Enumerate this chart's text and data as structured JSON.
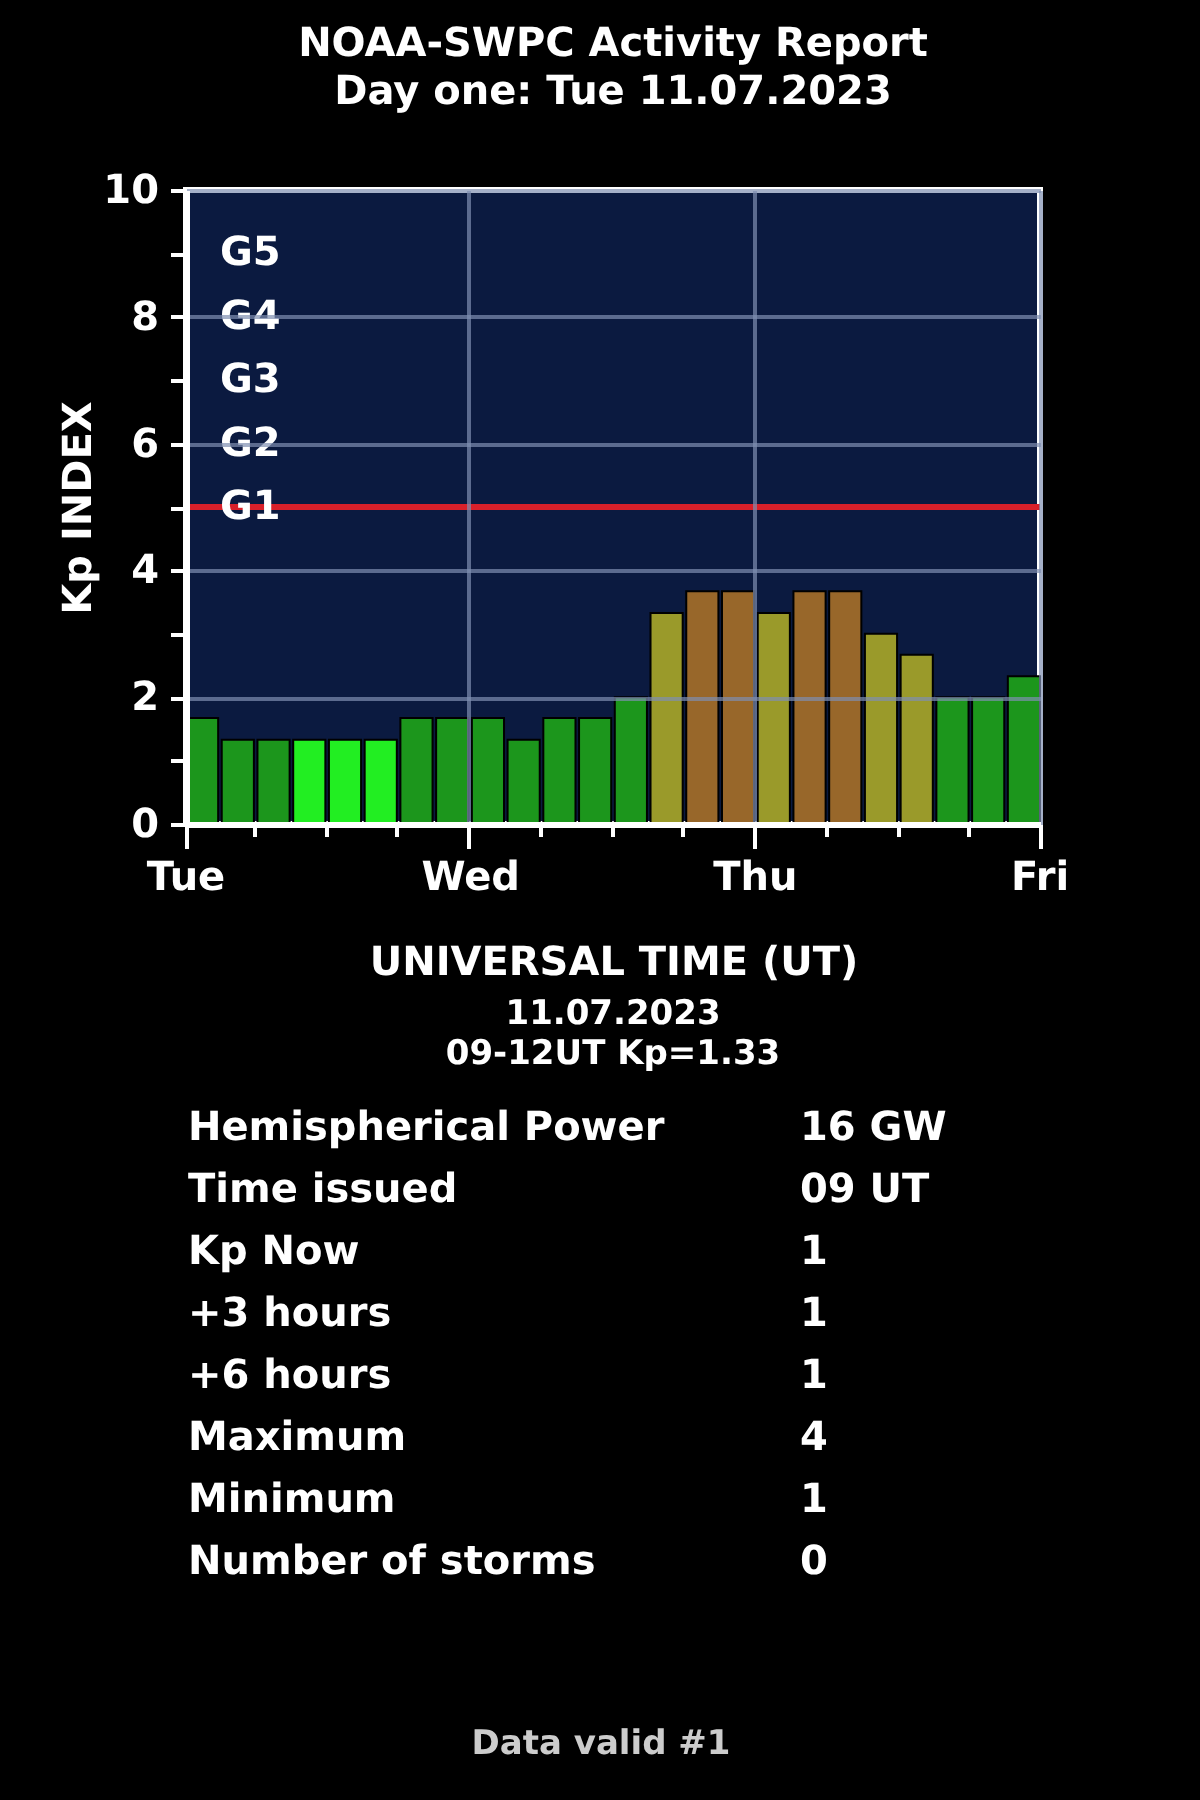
{
  "chart_data": [
    {
      "type": "bar",
      "title": "NOAA-SWPC Activity Report",
      "subtitle": "Day one: Tue 11.07.2023",
      "xlabel": "UNIVERSAL TIME (UT)",
      "ylabel": "Kp INDEX",
      "categories": [
        null,
        null,
        null,
        null,
        null,
        null,
        null,
        null,
        null,
        null,
        null,
        null,
        null,
        null,
        null,
        null,
        null,
        null,
        null,
        null,
        null,
        null,
        null,
        null
      ],
      "values": [
        1.67,
        1.33,
        1.33,
        1.33,
        1.33,
        1.33,
        1.67,
        1.67,
        1.67,
        1.33,
        1.67,
        1.67,
        2.0,
        3.33,
        3.67,
        3.67,
        3.33,
        3.67,
        3.67,
        3.0,
        2.67,
        2.0,
        2.0,
        2.33
      ],
      "colors": [
        "#1c961c",
        "#1c961c",
        "#1c961c",
        "#22ee22",
        "#22ee22",
        "#22ee22",
        "#1c961c",
        "#1c961c",
        "#1c961c",
        "#1c961c",
        "#1c961c",
        "#1c961c",
        "#1c961c",
        "#9a9a2a",
        "#98672a",
        "#98672a",
        "#9a9a2a",
        "#98672a",
        "#98672a",
        "#9a9a2a",
        "#9a9a2a",
        "#1c961c",
        "#1c961c",
        "#1c961c"
      ],
      "ylim": [
        0,
        10
      ],
      "yticks": [
        0,
        {
          "value": 1,
          "label": null
        },
        2,
        {
          "value": 3,
          "label": null
        },
        4,
        {
          "value": 5,
          "label": null
        },
        6,
        {
          "value": 7,
          "label": null
        },
        8,
        {
          "value": 9,
          "label": null
        },
        10
      ],
      "grid": true,
      "ref_lines": [
        {
          "axis": "y",
          "value": 5,
          "label": "G1",
          "color": "#d8202a"
        }
      ],
      "annotations": [
        "G5",
        "G4",
        "G3",
        "G2",
        "Tue",
        "Wed",
        "Thu",
        "Fri"
      ]
    },
    {
      "type": "other",
      "annotations": [
        "11.07.2023",
        "09-12UT Kp=1.33"
      ]
    },
    {
      "type": "other",
      "annotations": [
        "Hemispherical Power",
        "16 GW",
        "Time issued",
        "09 UT",
        "Kp Now",
        "1",
        "+3 hours",
        "1",
        "+6 hours",
        "1",
        "Maximum",
        "4",
        "Minimum",
        "1",
        "Number of storms",
        "0",
        "Data valid #1"
      ]
    }
  ]
}
